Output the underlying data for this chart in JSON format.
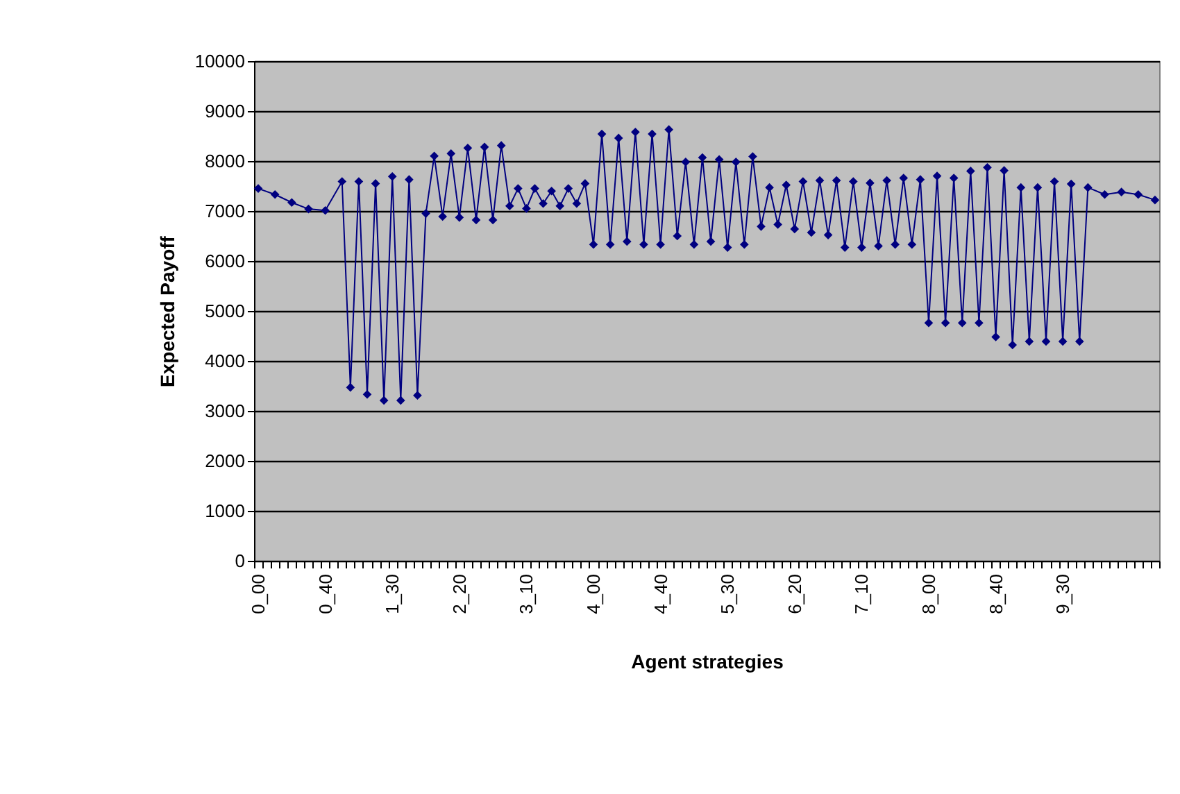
{
  "chart_data": {
    "type": "line",
    "xlabel": "Agent strategies",
    "ylabel": "Expected Payoff",
    "categories": [
      "0_00",
      null,
      null,
      null,
      null,
      null,
      null,
      null,
      "0_40",
      null,
      null,
      null,
      null,
      null,
      null,
      null,
      "1_30",
      null,
      null,
      null,
      null,
      null,
      null,
      null,
      "2_20",
      null,
      null,
      null,
      null,
      null,
      null,
      null,
      "3_10",
      null,
      null,
      null,
      null,
      null,
      null,
      null,
      "4_00",
      null,
      null,
      null,
      null,
      null,
      null,
      null,
      "4_40",
      null,
      null,
      null,
      null,
      null,
      null,
      null,
      "5_30",
      null,
      null,
      null,
      null,
      null,
      null,
      null,
      "6_20",
      null,
      null,
      null,
      null,
      null,
      null,
      null,
      "7_10",
      null,
      null,
      null,
      null,
      null,
      null,
      null,
      "8_00",
      null,
      null,
      null,
      null,
      null,
      null,
      null,
      "8_40",
      null,
      null,
      null,
      null,
      null,
      null,
      null,
      "9_30",
      null,
      null,
      null,
      null,
      null,
      null,
      null,
      null,
      null,
      null,
      null
    ],
    "series": [
      {
        "color": "#000080",
        "values": [
          7450,
          null,
          7330,
          null,
          7170,
          null,
          7040,
          null,
          7010,
          null,
          7590,
          3470,
          7590,
          3330,
          7550,
          3210,
          7690,
          3210,
          7630,
          3310,
          6950,
          8100,
          6890,
          8150,
          6870,
          8260,
          6820,
          8280,
          6820,
          8310,
          7100,
          7450,
          7050,
          7450,
          7150,
          7400,
          7100,
          7450,
          7150,
          7550,
          6330,
          8540,
          6330,
          8460,
          6390,
          8580,
          6330,
          8540,
          6330,
          8630,
          6500,
          7980,
          6330,
          8070,
          6390,
          8030,
          6270,
          7980,
          6330,
          8090,
          6690,
          7470,
          6730,
          7520,
          6640,
          7590,
          6570,
          7610,
          6520,
          7610,
          6270,
          7590,
          6270,
          7560,
          6300,
          7610,
          6330,
          7660,
          6330,
          7630,
          4760,
          7700,
          4760,
          7660,
          4760,
          7800,
          4760,
          7870,
          4480,
          7810,
          4320,
          7470,
          4390,
          7470,
          4390,
          7590,
          4390,
          7540,
          4390,
          7470,
          null,
          7330,
          null,
          7380,
          null,
          7330,
          null,
          7220
        ]
      }
    ],
    "ylim": [
      0,
      10000
    ],
    "yticks": [
      0,
      1000,
      2000,
      3000,
      4000,
      5000,
      6000,
      7000,
      8000,
      9000,
      10000
    ],
    "grid": "y",
    "marker": "diamond"
  }
}
